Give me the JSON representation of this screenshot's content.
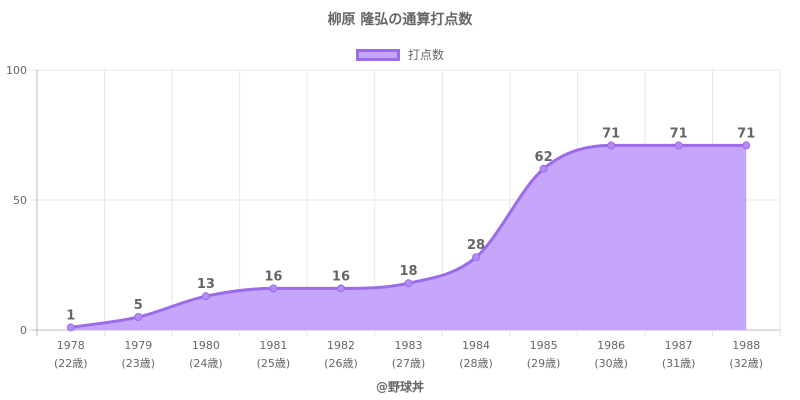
{
  "chart_data": {
    "type": "area",
    "title": "柳原 隆弘の通算打点数",
    "series": [
      {
        "name": "打点数",
        "values": [
          1,
          5,
          13,
          16,
          16,
          18,
          28,
          62,
          71,
          71,
          71
        ]
      }
    ],
    "categories": [
      "1978",
      "1979",
      "1980",
      "1981",
      "1982",
      "1983",
      "1984",
      "1985",
      "1986",
      "1987",
      "1988"
    ],
    "sub_categories": [
      "(22歳)",
      "(23歳)",
      "(24歳)",
      "(25歳)",
      "(26歳)",
      "(27歳)",
      "(28歳)",
      "(29歳)",
      "(30歳)",
      "(31歳)",
      "(32歳)"
    ],
    "ylim": [
      0,
      100
    ],
    "yticks": [
      0,
      50,
      100
    ],
    "grid": true,
    "legend": "top",
    "colors": {
      "line": "#9b6bea",
      "fill": "#c5a6fb",
      "point": "#b58cf5"
    }
  },
  "credit": "@野球丼"
}
